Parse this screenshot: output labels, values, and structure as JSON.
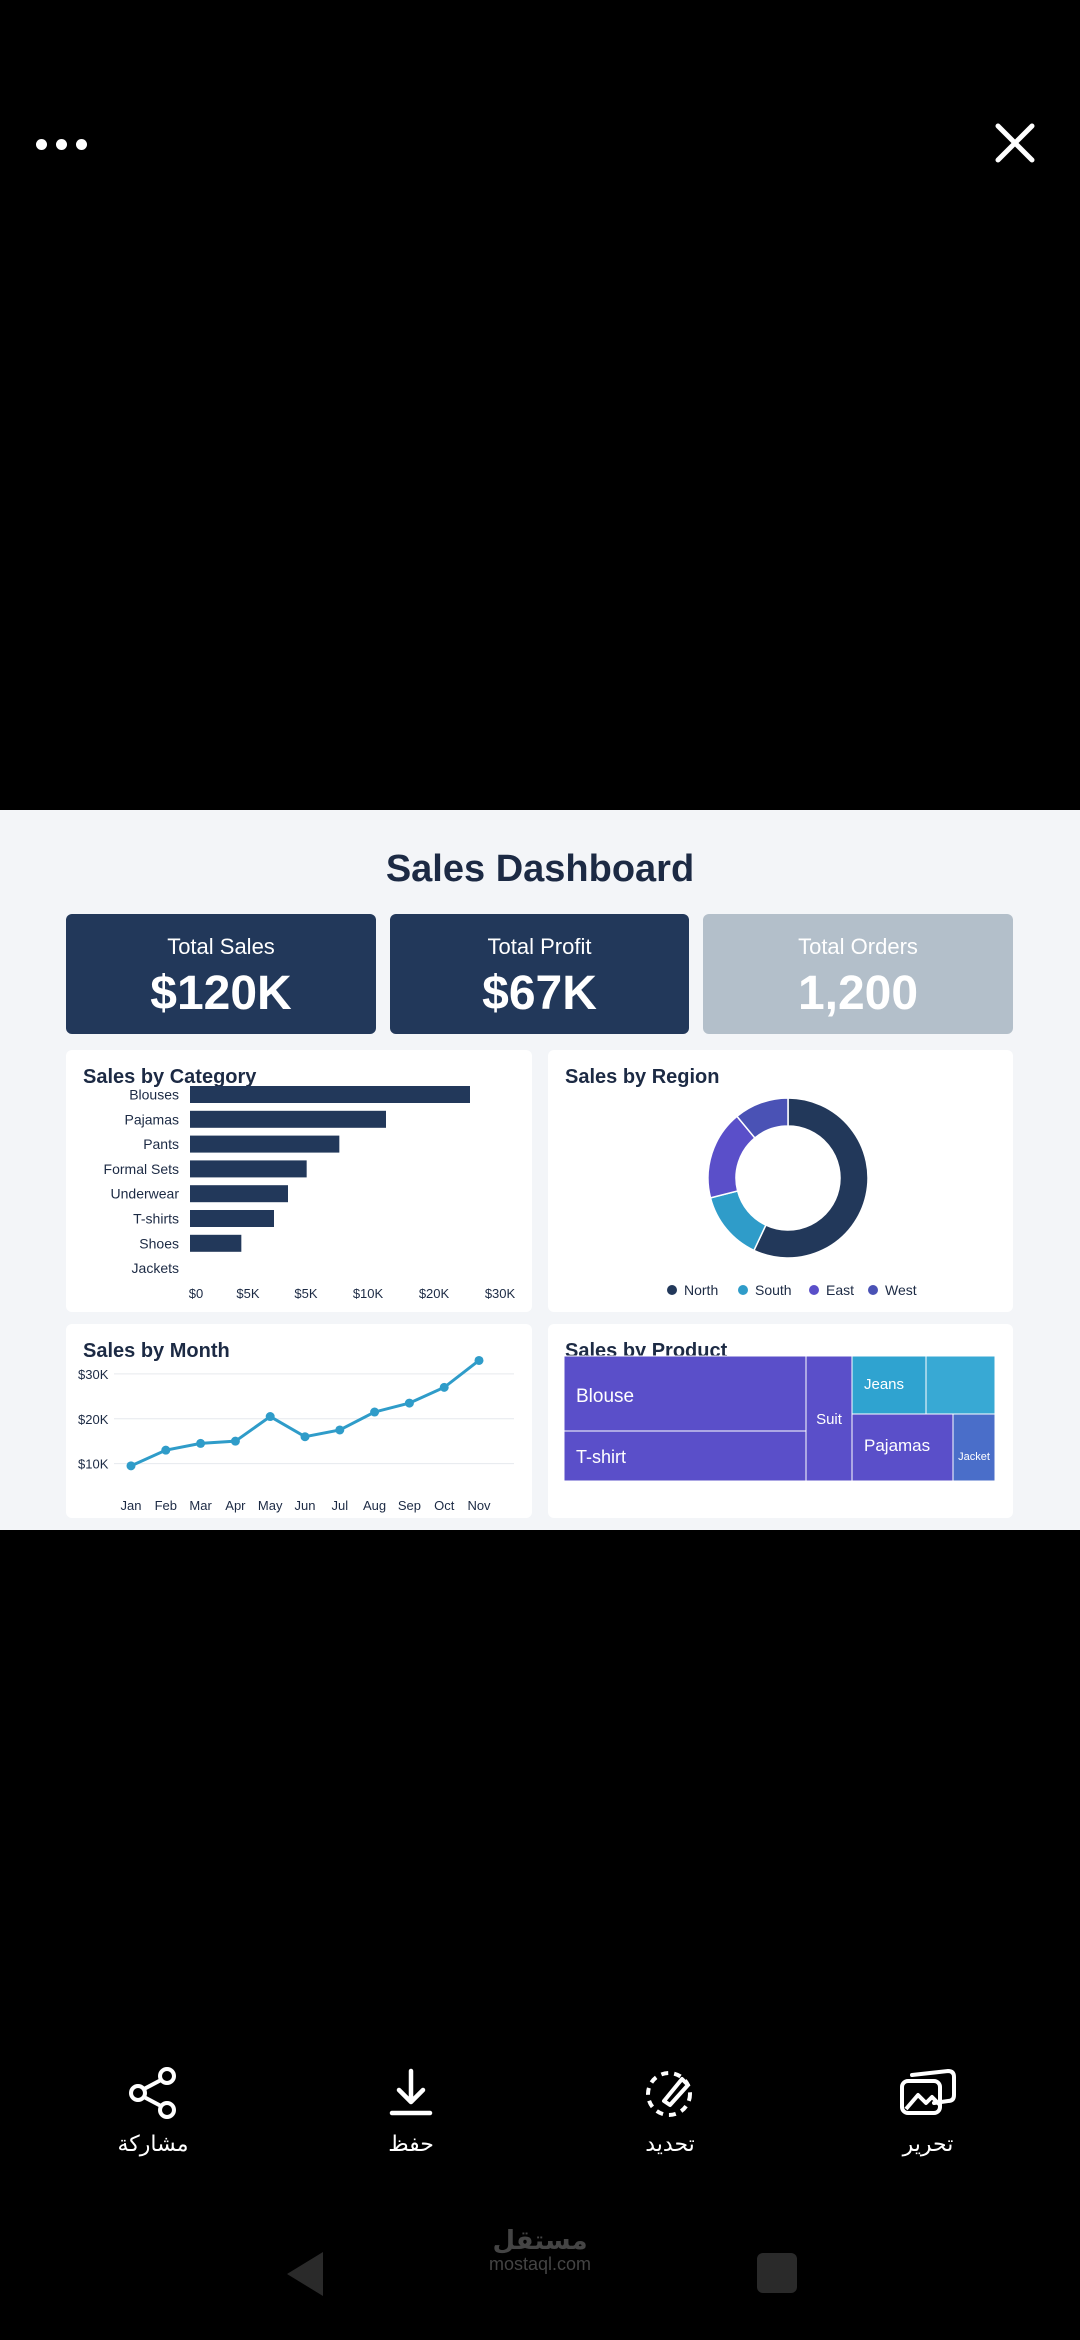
{
  "viewer": {
    "more_icon": "more-horizontal-icon",
    "close_icon": "close-icon"
  },
  "dashboard": {
    "title": "Sales Dashboard",
    "kpis": [
      {
        "label": "Total Sales",
        "value": "$120K",
        "color": "#22385a"
      },
      {
        "label": "Total Profit",
        "value": "$67K",
        "color": "#22385a"
      },
      {
        "label": "Total Orders",
        "value": "1,200",
        "color": "#b3bfca"
      }
    ],
    "cards": {
      "category": "Sales by Category",
      "region": "Sales by Region",
      "month": "Sales by Month",
      "product": "Sales by Product"
    }
  },
  "chart_data": [
    {
      "type": "bar",
      "title": "Sales by Category",
      "orientation": "horizontal",
      "categories": [
        "Blouses",
        "Pajamas",
        "Pants",
        "Formal Sets",
        "Underwear",
        "T-shirts",
        "Shoes",
        "Jackets"
      ],
      "values": [
        30000,
        21000,
        16000,
        12500,
        10500,
        9000,
        5500,
        0
      ],
      "x_tick_labels": [
        "$0",
        "$5K",
        "$5K",
        "$10K",
        "$20K",
        "$30K"
      ],
      "color": "#22385a"
    },
    {
      "type": "pie",
      "title": "Sales by Region",
      "donut": true,
      "legend": "bottom",
      "slices": [
        {
          "name": "North",
          "value": 57,
          "color": "#22385a"
        },
        {
          "name": "South",
          "value": 14,
          "color": "#2f9cc9"
        },
        {
          "name": "East",
          "value": 18,
          "color": "#5a4fc9"
        },
        {
          "name": "West",
          "value": 11,
          "color": "#4a52b5"
        }
      ],
      "legend_dot_colors": [
        "#22385a",
        "#2f9cc9",
        "#5a4fc9",
        "#4a52b5"
      ]
    },
    {
      "type": "line",
      "title": "Sales by Month",
      "x": [
        "Jan",
        "Feb",
        "Mar",
        "Apr",
        "May",
        "Jun",
        "Jul",
        "Aug",
        "Sep",
        "Oct",
        "Nov"
      ],
      "y_values": [
        9500,
        13000,
        14500,
        15000,
        20500,
        16000,
        17500,
        21500,
        23500,
        27000,
        33000
      ],
      "y_tick_labels": [
        "$30K",
        "$20K",
        "$10K"
      ],
      "y_ticks": [
        30000,
        20000,
        10000
      ],
      "ylim": [
        5000,
        34000
      ],
      "grid": true,
      "color": "#2f9cc9"
    },
    {
      "type": "heatmap",
      "title": "Sales by Product",
      "treemap_cells": [
        {
          "label": "Blouse",
          "value": 28,
          "color": "#5a4fc9"
        },
        {
          "label": "T-shirt",
          "value": 19,
          "color": "#5a4fc9"
        },
        {
          "label": "Suit",
          "value": 9,
          "color": "#5a4fc9"
        },
        {
          "label": "Jeans",
          "value": 13,
          "color": "#2fa3d0"
        },
        {
          "label": "",
          "value": 12,
          "color": "#38a9d4"
        },
        {
          "label": "Pajamas",
          "value": 14,
          "color": "#5a4fc9"
        },
        {
          "label": "Jacket",
          "value": 5,
          "color": "#4a6ec9"
        }
      ]
    }
  ],
  "toolbar": [
    {
      "label": "مشاركة",
      "icon": "share-icon"
    },
    {
      "label": "حفظ",
      "icon": "download-icon"
    },
    {
      "label": "تحديد",
      "icon": "select-icon"
    },
    {
      "label": "تحرير",
      "icon": "edit-icon"
    }
  ],
  "watermark": {
    "arabic": "مستقل",
    "latin": "mostaql.com"
  },
  "nav": {
    "back_icon": "back-icon",
    "home_icon": "home-icon",
    "recents_icon": "recents-icon"
  }
}
